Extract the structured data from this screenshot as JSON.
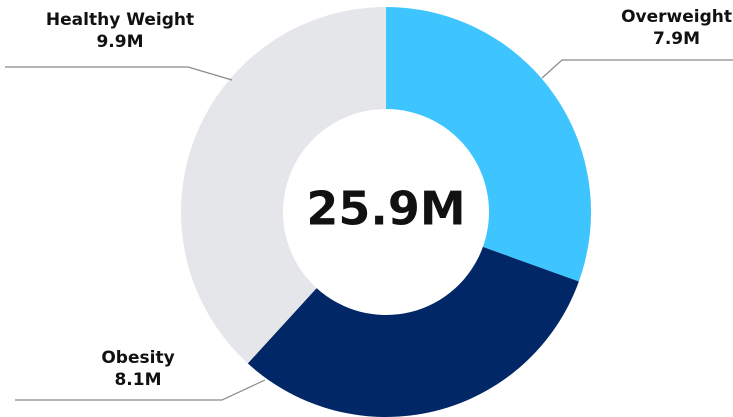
{
  "chart_data": {
    "type": "pie",
    "title": "",
    "center_total": "25.9M",
    "slices": [
      {
        "label": "Overweight",
        "value": 7.9,
        "value_label": "7.9M",
        "color": "#3EC5FF"
      },
      {
        "label": "Obesity",
        "value": 8.1,
        "value_label": "8.1M",
        "color": "#022766"
      },
      {
        "label": "Healthy Weight",
        "value": 9.9,
        "value_label": "9.9M",
        "color": "#E5E6EA"
      }
    ],
    "legend": "none",
    "unit": "M"
  }
}
